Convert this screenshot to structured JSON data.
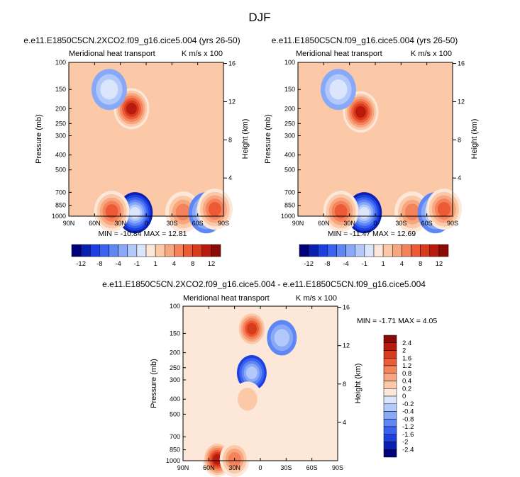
{
  "figure": {
    "title": "DJF"
  },
  "panels": [
    {
      "title": "e.e11.E1850C5CN.2XCO2.f09_g16.cice5.004 (yrs 26-50)",
      "left_label": "Meridional heat transport",
      "right_label": "K m/s x 100",
      "ylabel": "Pressure (mb)",
      "y2label": "Height (km)",
      "minmax": "MIN = -10.84  MAX = 12.81"
    },
    {
      "title": "e.e11.E1850C5CN.f09_g16.cice5.004 (yrs 26-50)",
      "left_label": "Meridional heat transport",
      "right_label": "K m/s x 100",
      "ylabel": "Pressure (mb)",
      "y2label": "Height (km)",
      "minmax": "MIN = -11.47  MAX = 12.69"
    },
    {
      "title": "e.e11.E1850C5CN.2XCO2.f09_g16.cice5.004 - e.e11.E1850C5CN.f09_g16.cice5.004",
      "left_label": "Meridional heat transport",
      "right_label": "K m/s x 100",
      "ylabel": "Pressure (mb)",
      "y2label": "Height (km)",
      "minmax": "MIN =  -1.71  MAX =   4.05"
    }
  ],
  "colorbars": {
    "top": {
      "labels": [
        "-12",
        "-8",
        "-4",
        "-1",
        "1",
        "4",
        "8",
        "12"
      ],
      "colors": [
        "#00007a",
        "#0a1fb0",
        "#1b3fe0",
        "#3a62f0",
        "#5e86f5",
        "#88a8f8",
        "#b3c9fb",
        "#dbe6fd",
        "#fde7d8",
        "#fbc9a8",
        "#f8a67f",
        "#f4825b",
        "#ec5a36",
        "#d83a1c",
        "#b81b0e",
        "#8a0a05"
      ]
    },
    "diff": {
      "labels": [
        "2.4",
        "2",
        "1.6",
        "1.2",
        "0.8",
        "0.4",
        "0.2",
        "0",
        "-0.2",
        "-0.4",
        "-0.8",
        "-1.2",
        "-1.6",
        "-2",
        "-2.4"
      ],
      "colors": [
        "#8a0a05",
        "#b81b0e",
        "#d83a1c",
        "#ec5a36",
        "#f4825b",
        "#f8a67f",
        "#fbc9a8",
        "#fde7d8",
        "#dbe6fd",
        "#b3c9fb",
        "#88a8f8",
        "#5e86f5",
        "#3a62f0",
        "#1b3fe0",
        "#0a1fb0",
        "#00007a"
      ]
    }
  },
  "chart_data": [
    {
      "type": "heatmap",
      "title": "e.e11.E1850C5CN.2XCO2.f09_g16.cice5.004 (yrs 26-50)",
      "x_tick_labels": [
        "90N",
        "60N",
        "30N",
        "0",
        "30S",
        "60S",
        "90S"
      ],
      "x_range": [
        90,
        -90
      ],
      "y_tick_labels": [
        100,
        150,
        200,
        250,
        300,
        400,
        500,
        700,
        850,
        1000
      ],
      "y_range": [
        100,
        1000
      ],
      "y_scale": "log",
      "y2_tick_labels": [
        16,
        12,
        8,
        4
      ],
      "min": -10.84,
      "max": 12.81,
      "features": [
        {
          "lat": 17,
          "p": 200,
          "value": 11
        },
        {
          "lat": 43,
          "p": 150,
          "value": -3
        },
        {
          "lat": 13,
          "p": 950,
          "value": -10.8
        },
        {
          "lat": 40,
          "p": 930,
          "value": 6
        },
        {
          "lat": -43,
          "p": 940,
          "value": 5
        },
        {
          "lat": -70,
          "p": 950,
          "value": -4
        },
        {
          "lat": -80,
          "p": 900,
          "value": 6
        }
      ],
      "levels": [
        -12,
        -10,
        -8,
        -6,
        -4,
        -2,
        -1,
        -0.5,
        0.5,
        1,
        2,
        4,
        6,
        8,
        10,
        12
      ],
      "grid": false
    },
    {
      "type": "heatmap",
      "title": "e.e11.E1850C5CN.f09_g16.cice5.004 (yrs 26-50)",
      "x_tick_labels": [
        "90N",
        "60N",
        "30N",
        "0",
        "30S",
        "60S",
        "90S"
      ],
      "x_range": [
        90,
        -90
      ],
      "y_tick_labels": [
        100,
        150,
        200,
        250,
        300,
        400,
        500,
        700,
        850,
        1000
      ],
      "y_range": [
        100,
        1000
      ],
      "y_scale": "log",
      "y2_tick_labels": [
        16,
        12,
        8,
        4
      ],
      "min": -11.47,
      "max": 12.69,
      "features": [
        {
          "lat": 17,
          "p": 210,
          "value": 11
        },
        {
          "lat": 43,
          "p": 150,
          "value": -3
        },
        {
          "lat": 13,
          "p": 950,
          "value": -11.4
        },
        {
          "lat": 40,
          "p": 930,
          "value": 6
        },
        {
          "lat": -43,
          "p": 940,
          "value": 5
        },
        {
          "lat": -70,
          "p": 950,
          "value": -4
        },
        {
          "lat": -80,
          "p": 900,
          "value": 6
        }
      ],
      "levels": [
        -12,
        -10,
        -8,
        -6,
        -4,
        -2,
        -1,
        -0.5,
        0.5,
        1,
        2,
        4,
        6,
        8,
        10,
        12
      ],
      "grid": false
    },
    {
      "type": "heatmap",
      "title": "e.e11.E1850C5CN.2XCO2.f09_g16.cice5.004 - e.e11.E1850C5CN.f09_g16.cice5.004",
      "x_tick_labels": [
        "90N",
        "60N",
        "30N",
        "0",
        "30S",
        "60S",
        "90S"
      ],
      "x_range": [
        90,
        -90
      ],
      "y_tick_labels": [
        100,
        150,
        200,
        250,
        300,
        400,
        500,
        700,
        850,
        1000
      ],
      "y_range": [
        100,
        1000
      ],
      "y_scale": "log",
      "y2_tick_labels": [
        16,
        12,
        8,
        4
      ],
      "min": -1.71,
      "max": 4.05,
      "features": [
        {
          "lat": 10,
          "p": 140,
          "value": 2.0
        },
        {
          "lat": 10,
          "p": 270,
          "value": -1.7
        },
        {
          "lat": -25,
          "p": 160,
          "value": -0.8
        },
        {
          "lat": 15,
          "p": 400,
          "value": 0.6
        },
        {
          "lat": 50,
          "p": 980,
          "value": 4.05
        },
        {
          "lat": 30,
          "p": 980,
          "value": 1.2
        }
      ],
      "levels": [
        -2.4,
        -2,
        -1.6,
        -1.2,
        -0.8,
        -0.4,
        -0.2,
        0,
        0.2,
        0.4,
        0.8,
        1.2,
        1.6,
        2,
        2.4
      ],
      "grid": false
    }
  ]
}
